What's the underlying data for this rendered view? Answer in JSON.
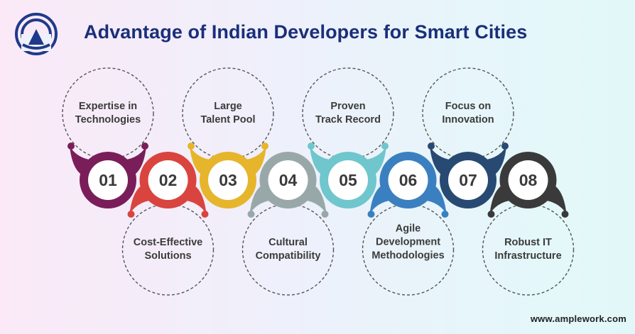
{
  "header": {
    "title": "Advantage of Indian Developers for Smart Cities"
  },
  "brand": {
    "logo_icon": "amplework-logo-icon",
    "website": "www.amplework.com",
    "logo_color": "#1f3a8a"
  },
  "steps": [
    {
      "number": "01",
      "line1": "Expertise in",
      "line2": "Technologies",
      "color": "#7a1e5a",
      "position": "top"
    },
    {
      "number": "02",
      "line1": "Cost-Effective",
      "line2": "Solutions",
      "color": "#d9443f",
      "position": "bottom"
    },
    {
      "number": "03",
      "line1": "Large",
      "line2": "Talent Pool",
      "color": "#e6b52b",
      "position": "top"
    },
    {
      "number": "04",
      "line1": "Cultural",
      "line2": "Compatibility",
      "color": "#98a8a8",
      "position": "bottom"
    },
    {
      "number": "05",
      "line1": "Proven",
      "line2": "Track Record",
      "color": "#6fc6cd",
      "position": "top"
    },
    {
      "number": "06",
      "line1": "Agile",
      "line2": "Development",
      "line3": "Methodologies",
      "color": "#3a80c0",
      "position": "bottom"
    },
    {
      "number": "07",
      "line1": "Focus on",
      "line2": "Innovation",
      "color": "#284a72",
      "position": "top"
    },
    {
      "number": "08",
      "line1": "Robust IT",
      "line2": "Infrastructure",
      "color": "#3a3a3a",
      "position": "bottom"
    }
  ]
}
